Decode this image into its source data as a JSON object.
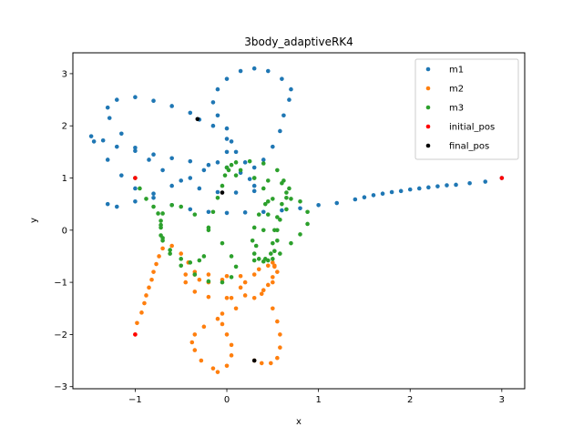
{
  "chart_data": {
    "type": "scatter",
    "title": "3body_adaptiveRK4",
    "xlabel": "x",
    "ylabel": "y",
    "xlim": [
      -1.68,
      3.25
    ],
    "ylim": [
      -3.04,
      3.4
    ],
    "xticks": [
      -1,
      0,
      1,
      2,
      3
    ],
    "yticks": [
      -3,
      -2,
      -1,
      0,
      1,
      2,
      3
    ],
    "xtick_labels": [
      "−1",
      "0",
      "1",
      "2",
      "3"
    ],
    "ytick_labels": [
      "−3",
      "−2",
      "−1",
      "0",
      "1",
      "2",
      "3"
    ],
    "grid": false,
    "legend_position": "top-right",
    "series": [
      {
        "name": "m1",
        "color": "#1f77b4",
        "points": [
          [
            3.0,
            1.0
          ],
          [
            2.82,
            0.93
          ],
          [
            2.65,
            0.9
          ],
          [
            2.5,
            0.87
          ],
          [
            2.4,
            0.86
          ],
          [
            2.3,
            0.84
          ],
          [
            2.2,
            0.82
          ],
          [
            2.1,
            0.8
          ],
          [
            2.0,
            0.78
          ],
          [
            1.9,
            0.75
          ],
          [
            1.8,
            0.73
          ],
          [
            1.7,
            0.7
          ],
          [
            1.6,
            0.67
          ],
          [
            1.5,
            0.63
          ],
          [
            1.4,
            0.59
          ],
          [
            1.2,
            0.52
          ],
          [
            1.0,
            0.48
          ],
          [
            0.8,
            0.42
          ],
          [
            0.6,
            0.38
          ],
          [
            0.4,
            0.35
          ],
          [
            0.2,
            0.34
          ],
          [
            0.0,
            0.33
          ],
          [
            -0.2,
            0.35
          ],
          [
            -0.4,
            0.4
          ],
          [
            -0.6,
            0.48
          ],
          [
            -0.8,
            0.62
          ],
          [
            -1.0,
            0.8
          ],
          [
            -1.15,
            1.05
          ],
          [
            -1.3,
            1.35
          ],
          [
            -1.45,
            1.7
          ],
          [
            -1.48,
            1.8
          ],
          [
            -1.35,
            1.72
          ],
          [
            -1.2,
            1.6
          ],
          [
            -1.0,
            1.52
          ],
          [
            -0.8,
            1.45
          ],
          [
            -0.6,
            1.38
          ],
          [
            -0.4,
            1.32
          ],
          [
            -0.2,
            1.25
          ],
          [
            0.0,
            1.2
          ],
          [
            0.15,
            1.1
          ],
          [
            0.25,
            0.98
          ],
          [
            0.3,
            0.85
          ],
          [
            0.3,
            0.75
          ],
          [
            0.1,
            0.72
          ],
          [
            -0.1,
            0.73
          ],
          [
            -0.3,
            0.8
          ],
          [
            -0.5,
            0.95
          ],
          [
            -0.7,
            1.15
          ],
          [
            -0.85,
            1.35
          ],
          [
            -1.0,
            1.58
          ],
          [
            -1.15,
            1.85
          ],
          [
            -1.28,
            2.15
          ],
          [
            -1.3,
            2.35
          ],
          [
            -1.2,
            2.5
          ],
          [
            -1.0,
            2.55
          ],
          [
            -0.8,
            2.48
          ],
          [
            -0.6,
            2.38
          ],
          [
            -0.4,
            2.25
          ],
          [
            -0.3,
            2.12
          ],
          [
            -0.15,
            2.0
          ],
          [
            0.0,
            1.75
          ],
          [
            0.1,
            1.5
          ],
          [
            0.2,
            1.3
          ],
          [
            0.3,
            1.2
          ],
          [
            0.4,
            1.35
          ],
          [
            0.5,
            1.6
          ],
          [
            0.58,
            1.9
          ],
          [
            0.62,
            2.2
          ],
          [
            0.68,
            2.5
          ],
          [
            0.7,
            2.7
          ],
          [
            0.6,
            2.9
          ],
          [
            0.45,
            3.05
          ],
          [
            0.3,
            3.1
          ],
          [
            0.15,
            3.05
          ],
          [
            0.0,
            2.9
          ],
          [
            -0.1,
            2.7
          ],
          [
            -0.15,
            2.45
          ],
          [
            -0.1,
            2.2
          ],
          [
            0.0,
            1.95
          ],
          [
            0.05,
            1.7
          ],
          [
            0.0,
            1.5
          ],
          [
            -0.1,
            1.3
          ],
          [
            -0.25,
            1.15
          ],
          [
            -0.4,
            1.0
          ],
          [
            -0.6,
            0.85
          ],
          [
            -0.8,
            0.7
          ],
          [
            -1.0,
            0.55
          ],
          [
            -1.2,
            0.45
          ],
          [
            -1.3,
            0.5
          ]
        ]
      },
      {
        "name": "m2",
        "color": "#ff7f0e",
        "points": [
          [
            -1.0,
            -2.0
          ],
          [
            -0.98,
            -1.78
          ],
          [
            -0.93,
            -1.58
          ],
          [
            -0.9,
            -1.4
          ],
          [
            -0.88,
            -1.25
          ],
          [
            -0.85,
            -1.1
          ],
          [
            -0.82,
            -0.95
          ],
          [
            -0.8,
            -0.8
          ],
          [
            -0.77,
            -0.65
          ],
          [
            -0.74,
            -0.5
          ],
          [
            -0.7,
            -0.35
          ],
          [
            -0.6,
            -0.3
          ],
          [
            -0.5,
            -0.45
          ],
          [
            -0.42,
            -0.62
          ],
          [
            -0.35,
            -0.8
          ],
          [
            -0.3,
            -0.95
          ],
          [
            -0.2,
            -1.0
          ],
          [
            -0.05,
            -0.95
          ],
          [
            0.15,
            -0.88
          ],
          [
            0.35,
            -0.75
          ],
          [
            0.5,
            -0.62
          ],
          [
            0.52,
            -0.7
          ],
          [
            0.5,
            -0.9
          ],
          [
            0.45,
            -1.05
          ],
          [
            0.3,
            -1.3
          ],
          [
            0.1,
            -1.5
          ],
          [
            -0.1,
            -1.7
          ],
          [
            -0.25,
            -1.85
          ],
          [
            -0.35,
            -2.0
          ],
          [
            -0.38,
            -2.15
          ],
          [
            -0.35,
            -2.3
          ],
          [
            -0.28,
            -2.5
          ],
          [
            -0.15,
            -2.65
          ],
          [
            -0.1,
            -2.72
          ],
          [
            0.0,
            -2.6
          ],
          [
            0.05,
            -2.4
          ],
          [
            0.05,
            -2.2
          ],
          [
            0.0,
            -2.0
          ],
          [
            -0.05,
            -1.8
          ],
          [
            -0.05,
            -1.6
          ],
          [
            0.05,
            -1.3
          ],
          [
            0.15,
            -1.1
          ],
          [
            0.3,
            -0.85
          ],
          [
            0.45,
            -0.68
          ],
          [
            0.52,
            -0.68
          ],
          [
            0.55,
            -0.8
          ],
          [
            0.5,
            -1.0
          ],
          [
            0.4,
            -1.15
          ],
          [
            0.2,
            -1.25
          ],
          [
            0.0,
            -1.3
          ],
          [
            -0.2,
            -1.28
          ],
          [
            -0.35,
            -1.18
          ],
          [
            -0.45,
            -1.0
          ],
          [
            -0.45,
            -0.85
          ],
          [
            -0.35,
            -0.85
          ],
          [
            -0.2,
            -0.85
          ],
          [
            0.0,
            -0.88
          ],
          [
            0.2,
            -1.0
          ],
          [
            0.38,
            -1.22
          ],
          [
            0.5,
            -1.5
          ],
          [
            0.55,
            -1.75
          ],
          [
            0.58,
            -2.0
          ],
          [
            0.58,
            -2.25
          ],
          [
            0.55,
            -2.45
          ],
          [
            0.48,
            -2.55
          ],
          [
            0.38,
            -2.55
          ],
          [
            0.3,
            -2.5
          ]
        ]
      },
      {
        "name": "m3",
        "color": "#2ca02c",
        "points": [
          [
            -1.0,
            1.0
          ],
          [
            -0.95,
            0.8
          ],
          [
            -0.88,
            0.6
          ],
          [
            -0.8,
            0.45
          ],
          [
            -0.75,
            0.32
          ],
          [
            -0.72,
            0.18
          ],
          [
            -0.72,
            0.05
          ],
          [
            -0.72,
            -0.1
          ],
          [
            -0.7,
            -0.2
          ],
          [
            -0.62,
            -0.45
          ],
          [
            -0.5,
            -0.68
          ],
          [
            -0.35,
            -0.85
          ],
          [
            -0.2,
            -0.98
          ],
          [
            -0.05,
            -1.0
          ],
          [
            0.05,
            -0.9
          ],
          [
            0.1,
            -0.7
          ],
          [
            0.05,
            -0.5
          ],
          [
            -0.05,
            -0.25
          ],
          [
            -0.2,
            0.05
          ],
          [
            -0.35,
            0.3
          ],
          [
            -0.5,
            0.45
          ],
          [
            -0.6,
            0.48
          ],
          [
            -0.7,
            0.32
          ],
          [
            -0.72,
            0.1
          ],
          [
            -0.7,
            -0.15
          ],
          [
            -0.62,
            -0.38
          ],
          [
            -0.5,
            -0.55
          ],
          [
            -0.4,
            -0.62
          ],
          [
            -0.3,
            -0.58
          ],
          [
            -0.25,
            -0.5
          ],
          [
            -0.2,
            0.0
          ],
          [
            -0.15,
            0.35
          ],
          [
            -0.1,
            0.62
          ],
          [
            -0.05,
            0.85
          ],
          [
            -0.02,
            1.05
          ],
          [
            0.0,
            1.2
          ],
          [
            0.1,
            1.3
          ],
          [
            0.25,
            1.32
          ],
          [
            0.4,
            1.28
          ],
          [
            0.55,
            1.15
          ],
          [
            0.62,
            0.95
          ],
          [
            0.65,
            0.72
          ],
          [
            0.6,
            0.5
          ],
          [
            0.55,
            0.25
          ],
          [
            0.52,
            0.0
          ],
          [
            0.5,
            -0.25
          ],
          [
            0.48,
            -0.45
          ],
          [
            0.42,
            -0.55
          ],
          [
            0.35,
            -0.55
          ],
          [
            0.3,
            -0.45
          ],
          [
            0.28,
            -0.2
          ],
          [
            0.3,
            0.05
          ],
          [
            0.35,
            0.3
          ],
          [
            0.42,
            0.5
          ],
          [
            0.5,
            0.6
          ],
          [
            0.65,
            0.62
          ],
          [
            0.8,
            0.55
          ],
          [
            0.88,
            0.35
          ],
          [
            0.88,
            0.12
          ],
          [
            0.8,
            -0.08
          ],
          [
            0.7,
            -0.25
          ],
          [
            0.58,
            -0.45
          ],
          [
            0.5,
            -0.55
          ],
          [
            0.4,
            -0.6
          ],
          [
            0.3,
            -0.58
          ],
          [
            0.32,
            -0.3
          ],
          [
            0.4,
            0.0
          ],
          [
            0.45,
            0.3
          ],
          [
            0.45,
            0.55
          ],
          [
            0.4,
            0.8
          ],
          [
            0.3,
            1.0
          ],
          [
            0.15,
            1.15
          ],
          [
            0.05,
            1.25
          ],
          [
            0.02,
            1.15
          ],
          [
            0.1,
            1.05
          ],
          [
            0.3,
            1.0
          ],
          [
            0.45,
            0.95
          ],
          [
            0.6,
            0.9
          ],
          [
            0.68,
            0.8
          ],
          [
            0.7,
            0.6
          ],
          [
            0.65,
            0.4
          ],
          [
            0.58,
            0.2
          ],
          [
            0.55,
            0.0
          ],
          [
            0.55,
            -0.2
          ],
          [
            0.52,
            -0.4
          ],
          [
            0.45,
            -0.58
          ]
        ]
      },
      {
        "name": "initial_pos",
        "color": "#ff0000",
        "points": [
          [
            -1.0,
            1.0
          ],
          [
            3.0,
            1.0
          ],
          [
            -1.0,
            -2.0
          ]
        ]
      },
      {
        "name": "final_pos",
        "color": "#000000",
        "points": [
          [
            -0.32,
            2.13
          ],
          [
            -0.05,
            0.72
          ],
          [
            0.3,
            -2.5
          ]
        ]
      }
    ]
  }
}
